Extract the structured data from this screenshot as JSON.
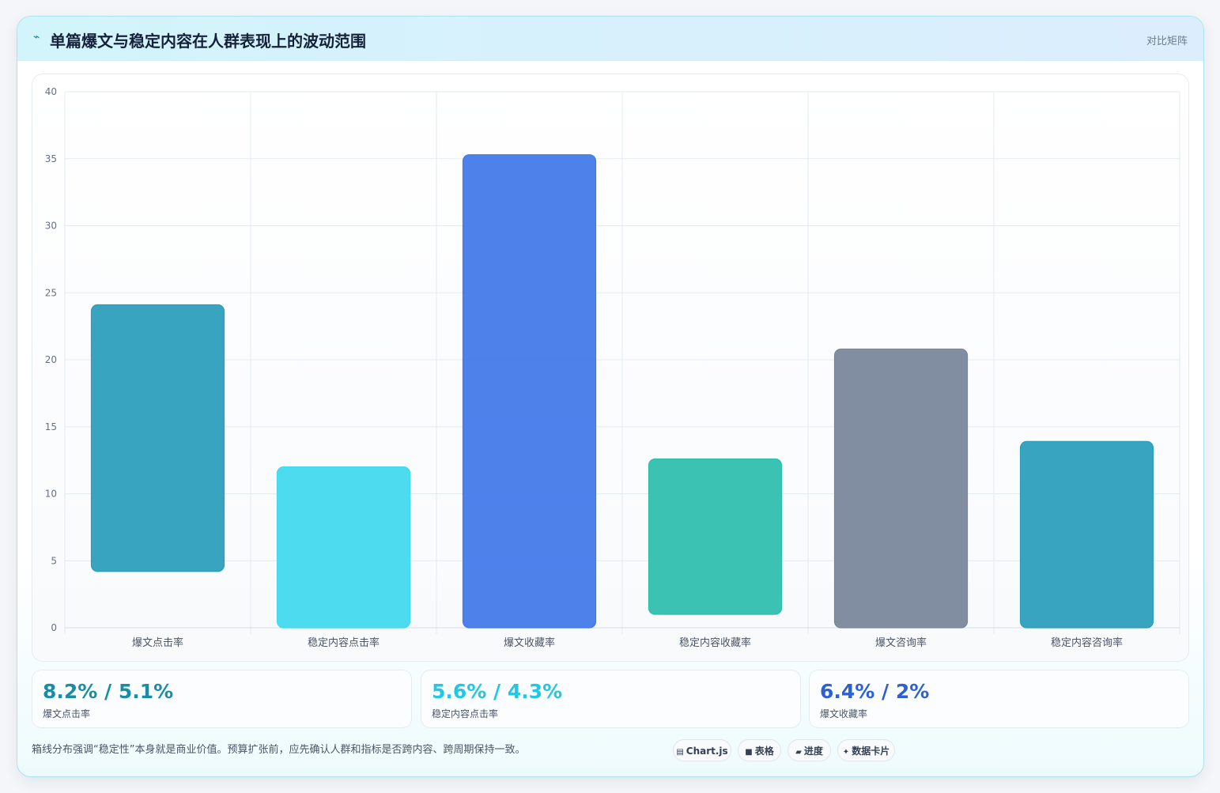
{
  "header": {
    "icon": "sparkline-icon",
    "title": "单篇爆文与稳定内容在人群表现上的波动范围",
    "corner_link": "对比矩阵"
  },
  "chart_data": {
    "type": "bar",
    "categories": [
      "爆文点击率",
      "稳定内容点击率",
      "爆文收藏率",
      "稳定内容收藏率",
      "爆文咨询率",
      "稳定内容咨询率"
    ],
    "ranges": [
      {
        "category": "爆文点击率",
        "low": 4.2,
        "high": 24.1,
        "color": "#2a9dba"
      },
      {
        "category": "稳定内容点击率",
        "low": 0,
        "high": 12.0,
        "color": "#3fd9ee"
      },
      {
        "category": "爆文收藏率",
        "low": 0,
        "high": 35.3,
        "color": "#4277ea"
      },
      {
        "category": "稳定内容收藏率",
        "low": 1.0,
        "high": 12.6,
        "color": "#2dbdad"
      },
      {
        "category": "爆文咨询率",
        "low": 0,
        "high": 20.8,
        "color": "#77859a"
      },
      {
        "category": "稳定内容咨询率",
        "low": 0,
        "high": 13.9,
        "color": "#2a9dba"
      }
    ],
    "yticks": [
      0,
      5,
      10,
      15,
      20,
      25,
      30,
      35,
      40
    ],
    "ylim": [
      0,
      40
    ],
    "grid": true,
    "legend": "none"
  },
  "stats": [
    {
      "value": "8.2% / 5.1%",
      "label": "爆文点击率",
      "color": "#178ea6"
    },
    {
      "value": "5.6% / 4.3%",
      "label": "稳定内容点击率",
      "color": "#1fc8e3"
    },
    {
      "value": "6.4% / 2%",
      "label": "爆文收藏率",
      "color": "#2d5fd6"
    }
  ],
  "footnote": "箱线分布强调“稳定性”本身就是商业价值。预算扩张前，应先确认人群和指标是否跨内容、跨周期保持一致。",
  "pills": [
    {
      "icon": "chart-icon",
      "glyph": "▤",
      "label": "Chart.js"
    },
    {
      "icon": "table-icon",
      "glyph": "■",
      "label": "表格"
    },
    {
      "icon": "progress-icon",
      "glyph": "▰",
      "label": "进度"
    },
    {
      "icon": "card-icon",
      "glyph": "✦",
      "label": "数据卡片"
    }
  ]
}
